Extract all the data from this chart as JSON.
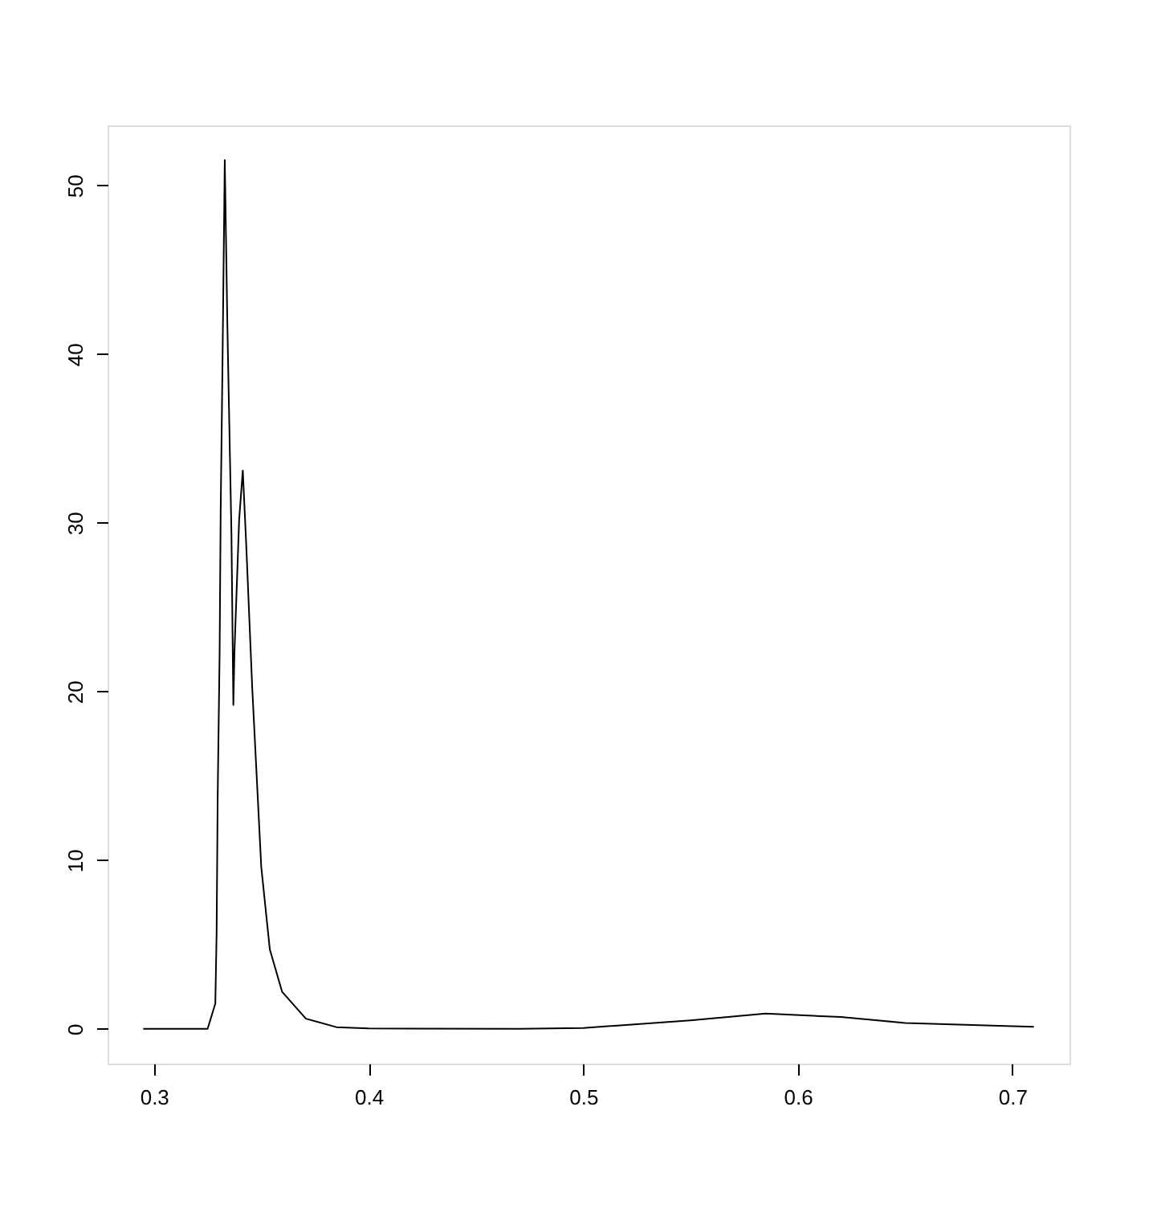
{
  "chart_data": {
    "type": "line",
    "color": "#000000",
    "grid": false,
    "xlim": [
      0.2784,
      0.7266
    ],
    "ylim": [
      -2.06,
      53.56
    ],
    "xticks": [
      0.3,
      0.4,
      0.5,
      0.6,
      0.7
    ],
    "yticks": [
      0,
      10,
      20,
      30,
      40,
      50
    ],
    "x": [
      0.295,
      0.325,
      0.3286,
      0.3292,
      0.3297,
      0.3306,
      0.3311,
      0.3319,
      0.333,
      0.3342,
      0.3361,
      0.337,
      0.3375,
      0.3397,
      0.3414,
      0.343,
      0.3458,
      0.35,
      0.354,
      0.3597,
      0.3708,
      0.385,
      0.4,
      0.47,
      0.5,
      0.55,
      0.585,
      0.62,
      0.65,
      0.7,
      0.71
    ],
    "values": [
      0,
      0,
      1.5,
      5.7,
      13.8,
      22.3,
      30.8,
      39,
      51.5,
      41.8,
      29.4,
      19.2,
      22.3,
      30.2,
      33.1,
      28.7,
      20.2,
      9.6,
      4.7,
      2.2,
      0.6,
      0.1,
      0.02,
      0,
      0.05,
      0.5,
      0.9,
      0.7,
      0.35,
      0.15,
      0.12
    ]
  }
}
